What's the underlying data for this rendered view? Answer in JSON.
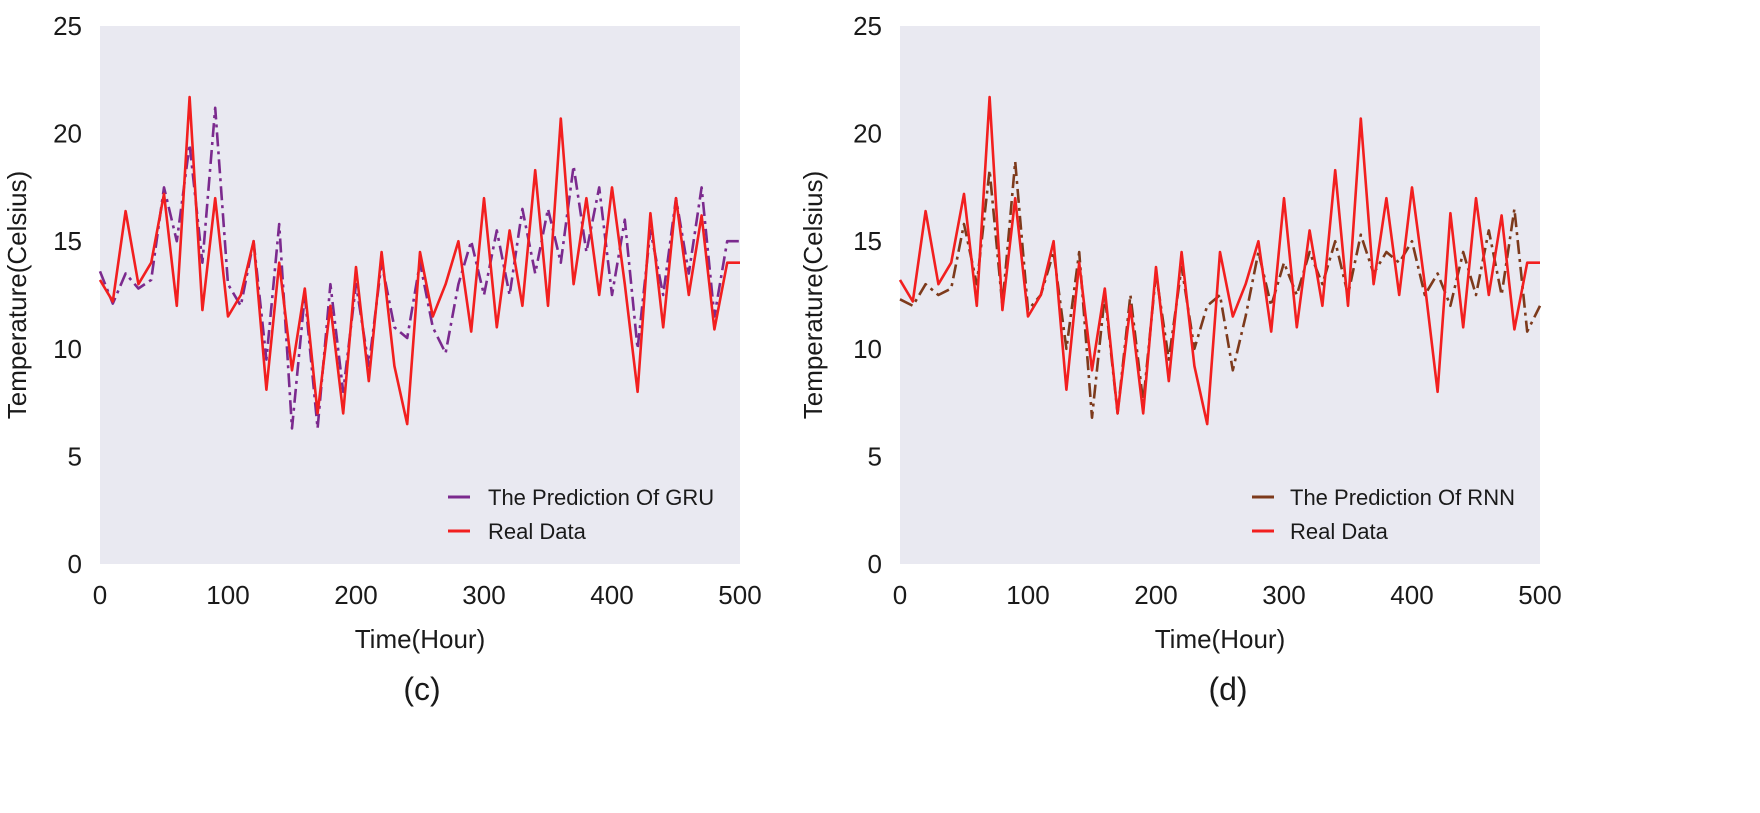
{
  "colors": {
    "plot_background": "#e9e9f1",
    "gru_prediction": "#7b2a8e",
    "rnn_prediction": "#7d3a1c",
    "real_data": "#f21f1f"
  },
  "chart_data": [
    {
      "type": "line",
      "panel_label": "(c)",
      "xlabel": "Time(Hour)",
      "ylabel": "Temperature(Celsius)",
      "xlim": [
        0,
        500
      ],
      "ylim": [
        0,
        25
      ],
      "xticks": [
        0,
        100,
        200,
        300,
        400,
        500
      ],
      "yticks": [
        0,
        5,
        10,
        15,
        20,
        25
      ],
      "grid": false,
      "legend_position": "lower-right",
      "x": [
        0,
        10,
        20,
        30,
        40,
        50,
        60,
        70,
        80,
        90,
        100,
        110,
        120,
        130,
        140,
        150,
        160,
        170,
        180,
        190,
        200,
        210,
        220,
        230,
        240,
        250,
        260,
        270,
        280,
        290,
        300,
        310,
        320,
        330,
        340,
        350,
        360,
        370,
        380,
        390,
        400,
        410,
        420,
        430,
        440,
        450,
        460,
        470,
        480,
        490,
        500
      ],
      "series": [
        {
          "name": "The Prediction Of GRU",
          "style": "dashdot",
          "values": [
            13.6,
            12.1,
            13.5,
            12.8,
            13.2,
            17.5,
            15.0,
            19.5,
            14.0,
            21.2,
            13.0,
            12.0,
            15.0,
            9.5,
            15.8,
            6.3,
            12.5,
            6.3,
            13.0,
            8.0,
            13.0,
            9.2,
            14.0,
            11.0,
            10.5,
            14.0,
            11.0,
            9.8,
            13.0,
            15.0,
            12.5,
            15.5,
            12.5,
            16.5,
            13.5,
            16.5,
            14.0,
            18.5,
            14.5,
            17.5,
            12.5,
            16.0,
            10.0,
            15.5,
            12.5,
            17.0,
            13.5,
            17.5,
            11.5,
            15.0,
            15.0
          ]
        },
        {
          "name": "Real Data",
          "style": "solid",
          "values": [
            13.2,
            12.2,
            16.4,
            13.0,
            14.0,
            17.2,
            12.0,
            21.7,
            11.8,
            17.0,
            11.5,
            12.5,
            15.0,
            8.1,
            14.0,
            9.0,
            12.8,
            7.0,
            12.0,
            7.0,
            13.8,
            8.5,
            14.5,
            9.2,
            6.5,
            14.5,
            11.5,
            13.0,
            15.0,
            10.8,
            17.0,
            11.0,
            15.5,
            12.0,
            18.3,
            12.0,
            20.7,
            13.0,
            17.0,
            12.5,
            17.5,
            13.0,
            8.0,
            16.3,
            11.0,
            17.0,
            12.5,
            16.2,
            10.9,
            14.0,
            14.0
          ]
        }
      ]
    },
    {
      "type": "line",
      "panel_label": "(d)",
      "xlabel": "Time(Hour)",
      "ylabel": "Temperature(Celsius)",
      "xlim": [
        0,
        500
      ],
      "ylim": [
        0,
        25
      ],
      "xticks": [
        0,
        100,
        200,
        300,
        400,
        500
      ],
      "yticks": [
        0,
        5,
        10,
        15,
        20,
        25
      ],
      "grid": false,
      "legend_position": "lower-right",
      "x": [
        0,
        10,
        20,
        30,
        40,
        50,
        60,
        70,
        80,
        90,
        100,
        110,
        120,
        130,
        140,
        150,
        160,
        170,
        180,
        190,
        200,
        210,
        220,
        230,
        240,
        250,
        260,
        270,
        280,
        290,
        300,
        310,
        320,
        330,
        340,
        350,
        360,
        370,
        380,
        390,
        400,
        410,
        420,
        430,
        440,
        450,
        460,
        470,
        480,
        490,
        500
      ],
      "series": [
        {
          "name": "The Prediction Of RNN",
          "style": "dashdot",
          "values": [
            12.3,
            12.0,
            13.0,
            12.5,
            12.8,
            15.8,
            13.0,
            18.3,
            12.0,
            18.7,
            11.8,
            12.5,
            14.5,
            10.0,
            14.5,
            6.8,
            12.5,
            7.0,
            12.5,
            7.5,
            13.5,
            9.5,
            13.8,
            10.0,
            12.0,
            12.5,
            9.0,
            11.5,
            14.5,
            12.0,
            14.0,
            12.5,
            14.5,
            13.0,
            15.0,
            12.5,
            15.3,
            13.5,
            14.5,
            14.0,
            15.0,
            12.5,
            13.5,
            12.0,
            14.5,
            12.5,
            15.5,
            12.5,
            16.5,
            10.8,
            12.0
          ]
        },
        {
          "name": "Real Data",
          "style": "solid",
          "values": [
            13.2,
            12.2,
            16.4,
            13.0,
            14.0,
            17.2,
            12.0,
            21.7,
            11.8,
            17.0,
            11.5,
            12.5,
            15.0,
            8.1,
            14.0,
            9.0,
            12.8,
            7.0,
            12.0,
            7.0,
            13.8,
            8.5,
            14.5,
            9.2,
            6.5,
            14.5,
            11.5,
            13.0,
            15.0,
            10.8,
            17.0,
            11.0,
            15.5,
            12.0,
            18.3,
            12.0,
            20.7,
            13.0,
            17.0,
            12.5,
            17.5,
            13.0,
            8.0,
            16.3,
            11.0,
            17.0,
            12.5,
            16.2,
            10.9,
            14.0,
            14.0
          ]
        }
      ]
    }
  ]
}
